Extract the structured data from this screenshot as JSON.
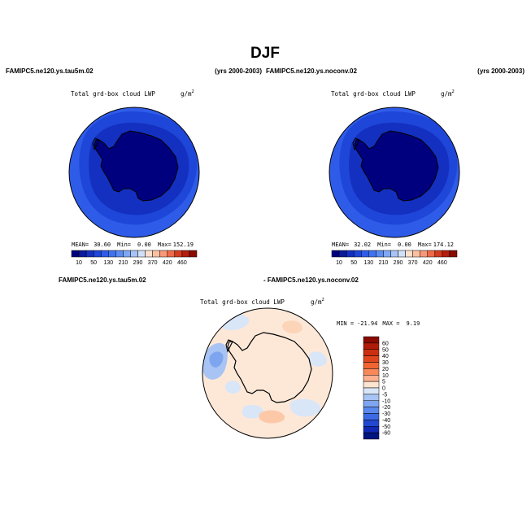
{
  "figure": {
    "title": "DJF"
  },
  "panels": {
    "left": {
      "case_label": "FAMIPC5.ne120.ys.tau5m.02",
      "years": "(yrs 2000-2003)",
      "field": "Total grd-box cloud LWP",
      "units": "g/m",
      "units_sup": "2",
      "stats": {
        "mean_label": "MEAN=",
        "mean": "30.60",
        "min_label": "Min=",
        "min": "0.00",
        "max_label": "Max=",
        "max": "152.19"
      },
      "colorbar_ticks": [
        "10",
        "50",
        "130",
        "210",
        "290",
        "370",
        "420",
        "460"
      ]
    },
    "right": {
      "case_label": "FAMIPC5.ne120.ys.noconv.02",
      "years": "(yrs 2000-2003)",
      "field": "Total grd-box cloud LWP",
      "units": "g/m",
      "units_sup": "2",
      "stats": {
        "mean_label": "MEAN=",
        "mean": "32.02",
        "min_label": "Min=",
        "min": "0.00",
        "max_label": "Max=",
        "max": "174.12"
      },
      "colorbar_ticks": [
        "10",
        "50",
        "130",
        "210",
        "290",
        "370",
        "420",
        "460"
      ]
    },
    "diff": {
      "label_a": "FAMIPC5.ne120.ys.tau5m.02",
      "label_b": "- FAMIPC5.ne120.ys.noconv.02",
      "field": "Total grd-box cloud LWP",
      "units": "g/m",
      "units_sup": "2",
      "stats": {
        "min_label": "MIN =",
        "min": "-21.94",
        "max_label": "MAX =",
        "max": "9.19"
      },
      "colorbar_labels": [
        "60",
        "50",
        "40",
        "30",
        "20",
        "10",
        "5",
        "0",
        "-5",
        "-10",
        "-20",
        "-30",
        "-40",
        "-50",
        "-60"
      ]
    }
  },
  "colors": {
    "abs_scale": [
      "#00007f",
      "#0a1a9a",
      "#1430c0",
      "#1e46d8",
      "#2e5ce8",
      "#3f72f0",
      "#5a8cf2",
      "#7fa8f4",
      "#a8c4f6",
      "#d0e0f8",
      "#fde0cc",
      "#fcc0a0",
      "#f89878",
      "#ee6a48",
      "#d43c20",
      "#b41e0c",
      "#8a0a00"
    ],
    "diff_scale": [
      "#8a0a00",
      "#b01a08",
      "#cc2e10",
      "#e0461e",
      "#f06432",
      "#f8885a",
      "#fcb090",
      "#fde4d0",
      "#d8e6f8",
      "#a8c4f4",
      "#7ea6f0",
      "#5a88ec",
      "#3c6ae4",
      "#2248d2",
      "#1028b4",
      "#00147f"
    ],
    "ocean_outer": "#2e5ce8",
    "ocean_mid": "#1e46d8",
    "ocean_inner": "#1430c0",
    "continent": "#00007f",
    "diff_bg": "#fde8d8"
  },
  "chart_data": [
    {
      "type": "heatmap",
      "title": "Total grd-box cloud LWP",
      "subtitle": "FAMIPC5.ne120.ys.tau5m.02 (yrs 2000-2003), DJF",
      "units": "g/m2",
      "projection": "south polar stereographic",
      "contour_levels": [
        10,
        50,
        130,
        210,
        290,
        370,
        420,
        460
      ],
      "mean": 30.6,
      "min": 0.0,
      "max": 152.19
    },
    {
      "type": "heatmap",
      "title": "Total grd-box cloud LWP",
      "subtitle": "FAMIPC5.ne120.ys.noconv.02 (yrs 2000-2003), DJF",
      "units": "g/m2",
      "projection": "south polar stereographic",
      "contour_levels": [
        10,
        50,
        130,
        210,
        290,
        370,
        420,
        460
      ],
      "mean": 32.02,
      "min": 0.0,
      "max": 174.12
    },
    {
      "type": "heatmap",
      "title": "Total grd-box cloud LWP",
      "subtitle": "FAMIPC5.ne120.ys.tau5m.02 - FAMIPC5.ne120.ys.noconv.02",
      "units": "g/m2",
      "projection": "south polar stereographic",
      "contour_levels": [
        -60,
        -50,
        -40,
        -30,
        -20,
        -10,
        -5,
        0,
        5,
        10,
        20,
        30,
        40,
        50,
        60
      ],
      "min": -21.94,
      "max": 9.19
    }
  ]
}
